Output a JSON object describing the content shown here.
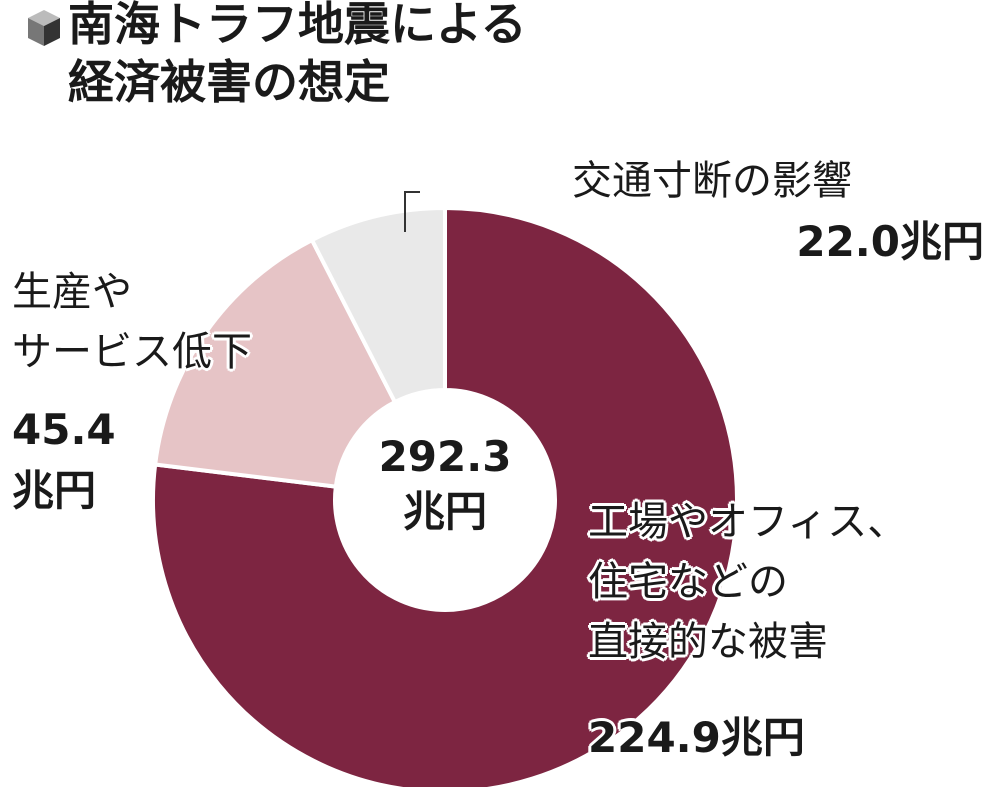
{
  "chart_data": {
    "type": "donut",
    "title": "南海トラフ地震による\n経済被害の想定",
    "center_label": "292.3\n兆円",
    "categories": [
      "工場やオフィス、\n住宅などの\n直接的な被害",
      "生産や\nサービス低下",
      "交通寸断の影響"
    ],
    "values": [
      224.9,
      45.4,
      22.0
    ],
    "value_labels": [
      "224.9兆円",
      "45.4\n兆円",
      "22.0兆円"
    ],
    "colors": [
      "#7d2541",
      "#e6c4c6",
      "#e9e9e9"
    ]
  }
}
